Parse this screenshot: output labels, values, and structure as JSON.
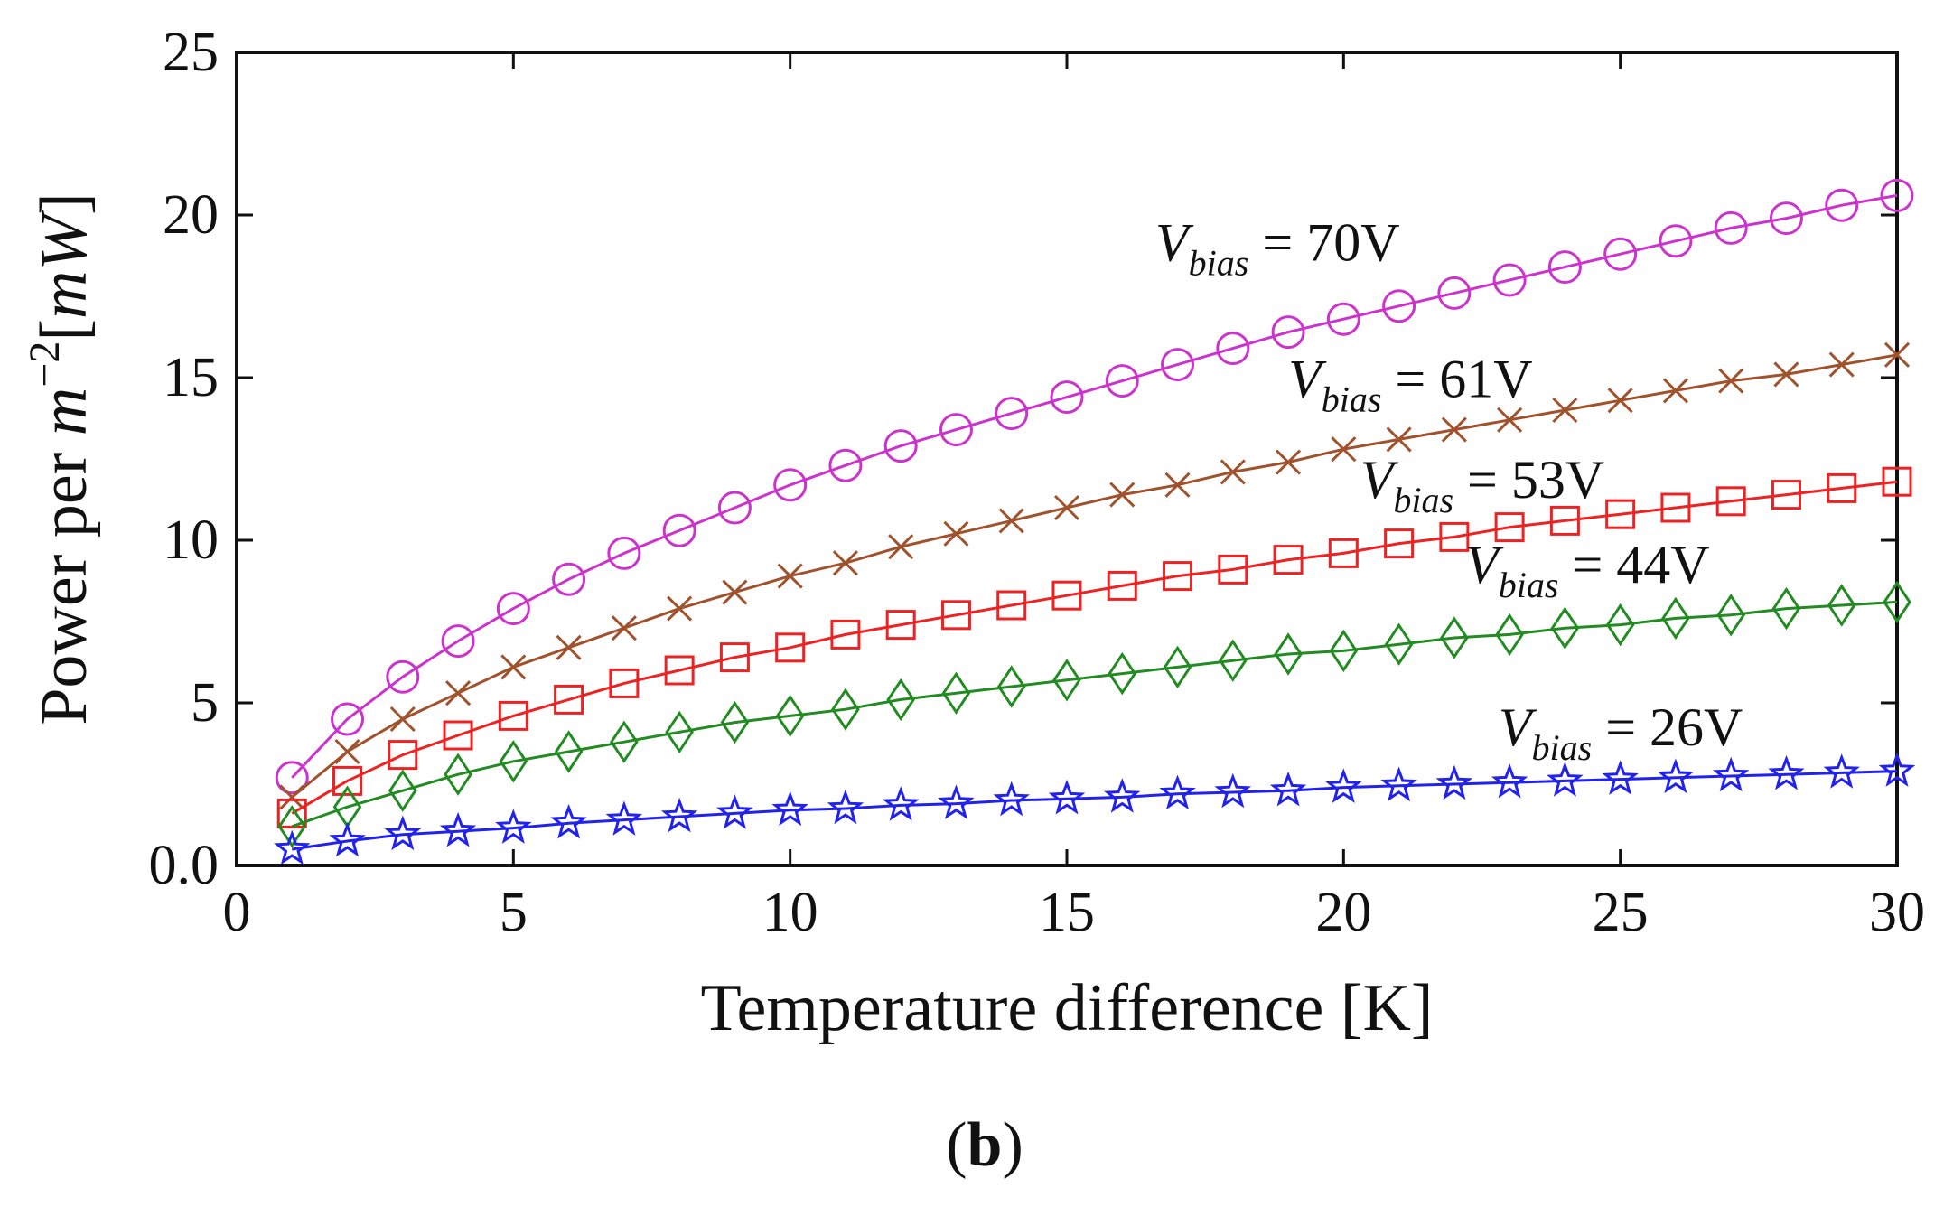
{
  "chart_data": {
    "type": "line",
    "title": "",
    "panel_label": {
      "open": "(",
      "letter": "b",
      "close": ")"
    },
    "xlabel": "Temperature difference [K]",
    "ylabel": {
      "prefix": "Power per ",
      "var": "m",
      "exponent": "−2",
      "unit_open": "[",
      "unit": "mW",
      "unit_close": "]"
    },
    "xlim": [
      0,
      30
    ],
    "ylim": [
      0,
      25
    ],
    "xticks": [
      0,
      5,
      10,
      15,
      20,
      25,
      30
    ],
    "xtick_labels": [
      "0",
      "5",
      "10",
      "15",
      "20",
      "25",
      "30"
    ],
    "yticks": [
      0,
      5,
      10,
      15,
      20,
      25
    ],
    "ytick_labels": [
      "0.0",
      "5",
      "10",
      "15",
      "20",
      "25"
    ],
    "grid": false,
    "x": [
      1,
      2,
      3,
      4,
      5,
      6,
      7,
      8,
      9,
      10,
      11,
      12,
      13,
      14,
      15,
      16,
      17,
      18,
      19,
      20,
      21,
      22,
      23,
      24,
      25,
      26,
      27,
      28,
      29,
      30
    ],
    "series": [
      {
        "name": "Vbias = 70V",
        "label": {
          "sym": "V",
          "sub": "bias",
          "rest": " = 70V"
        },
        "color": "#cc33cc",
        "marker": "circle",
        "values": [
          2.7,
          4.5,
          5.8,
          6.9,
          7.9,
          8.8,
          9.6,
          10.3,
          11.0,
          11.7,
          12.3,
          12.9,
          13.4,
          13.9,
          14.4,
          14.9,
          15.4,
          15.9,
          16.4,
          16.8,
          17.2,
          17.6,
          18.0,
          18.4,
          18.8,
          19.2,
          19.6,
          19.9,
          20.3,
          20.6
        ]
      },
      {
        "name": "Vbias = 61V",
        "label": {
          "sym": "V",
          "sub": "bias",
          "rest": " = 61V"
        },
        "color": "#a0522d",
        "marker": "x",
        "values": [
          2.1,
          3.5,
          4.5,
          5.3,
          6.1,
          6.7,
          7.3,
          7.9,
          8.4,
          8.9,
          9.3,
          9.8,
          10.2,
          10.6,
          11.0,
          11.4,
          11.7,
          12.1,
          12.4,
          12.8,
          13.1,
          13.4,
          13.7,
          14.0,
          14.3,
          14.6,
          14.9,
          15.1,
          15.4,
          15.7
        ]
      },
      {
        "name": "Vbias = 53V",
        "label": {
          "sym": "V",
          "sub": "bias",
          "rest": " = 53V"
        },
        "color": "#ee2222",
        "marker": "square",
        "values": [
          1.6,
          2.6,
          3.4,
          4.0,
          4.6,
          5.1,
          5.6,
          6.0,
          6.4,
          6.7,
          7.1,
          7.4,
          7.7,
          8.0,
          8.3,
          8.6,
          8.9,
          9.1,
          9.4,
          9.6,
          9.9,
          10.1,
          10.4,
          10.6,
          10.8,
          11.0,
          11.2,
          11.4,
          11.6,
          11.8
        ]
      },
      {
        "name": "Vbias = 44V",
        "label": {
          "sym": "V",
          "sub": "bias",
          "rest": " = 44V"
        },
        "color": "#228b22",
        "marker": "diamond",
        "values": [
          1.2,
          1.8,
          2.3,
          2.8,
          3.2,
          3.5,
          3.8,
          4.1,
          4.4,
          4.6,
          4.8,
          5.1,
          5.3,
          5.5,
          5.7,
          5.9,
          6.1,
          6.3,
          6.5,
          6.6,
          6.8,
          7.0,
          7.1,
          7.3,
          7.4,
          7.6,
          7.7,
          7.9,
          8.0,
          8.1
        ]
      },
      {
        "name": "Vbias = 26V",
        "label": {
          "sym": "V",
          "sub": "bias",
          "rest": " = 26V"
        },
        "color": "#2222ee",
        "marker": "star",
        "values": [
          0.5,
          0.75,
          0.95,
          1.05,
          1.15,
          1.3,
          1.4,
          1.5,
          1.6,
          1.7,
          1.75,
          1.85,
          1.9,
          2.0,
          2.05,
          2.1,
          2.2,
          2.25,
          2.3,
          2.4,
          2.45,
          2.5,
          2.55,
          2.6,
          2.65,
          2.7,
          2.75,
          2.8,
          2.85,
          2.9
        ]
      }
    ],
    "series_label_anchors": [
      {
        "x": 16.6,
        "y": 18.6
      },
      {
        "x": 19.0,
        "y": 14.4
      },
      {
        "x": 20.3,
        "y": 11.3
      },
      {
        "x": 22.2,
        "y": 8.7
      },
      {
        "x": 22.8,
        "y": 3.7
      }
    ]
  }
}
